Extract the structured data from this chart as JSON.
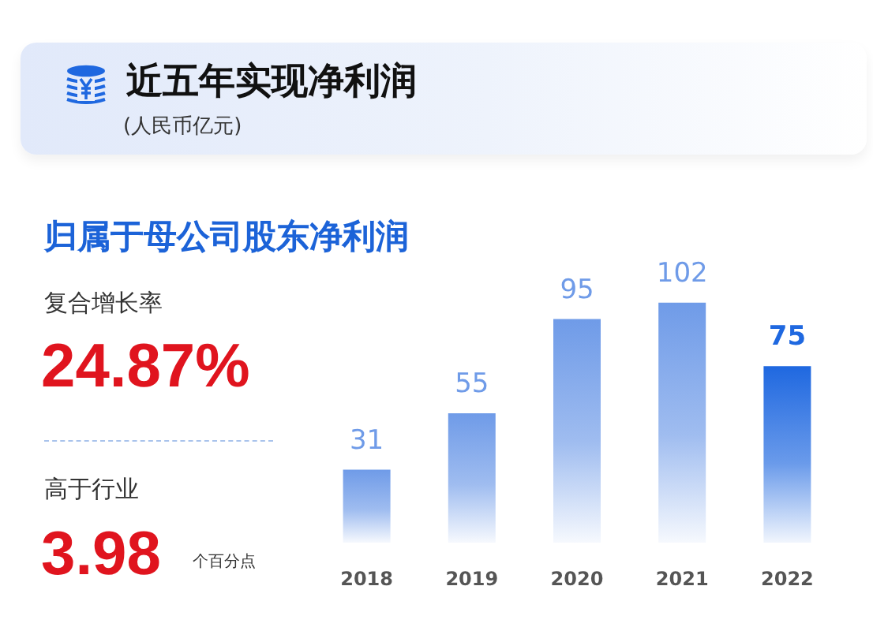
{
  "chart_data": {
    "type": "bar",
    "title": "近五年实现净利润",
    "subtitle": "(人民币亿元)",
    "annotations": [
      "归属于母公司股东净利润",
      "复合增长率",
      "24.87%",
      "高于行业",
      "3.98",
      "个百分点"
    ],
    "categories": [
      "2018",
      "2019",
      "2020",
      "2021",
      "2022"
    ],
    "values": [
      31,
      55,
      95,
      102,
      75
    ],
    "colors": [
      "#6f9be8",
      "#6f9be8",
      "#6f9be8",
      "#6f9be8",
      "#1f68e0"
    ],
    "data_labels": true
  }
}
